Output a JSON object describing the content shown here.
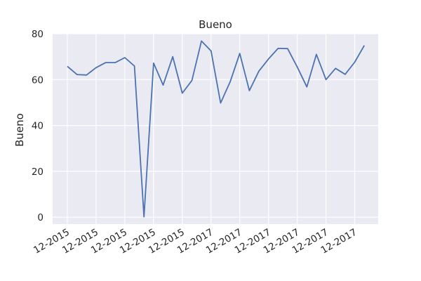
{
  "chart_data": {
    "type": "line",
    "title": "Bueno",
    "xlabel": "",
    "ylabel": "Bueno",
    "ylim": [
      -3,
      80
    ],
    "yticks": [
      0,
      20,
      40,
      60,
      80
    ],
    "xticks": [
      "12-2015",
      "12-2015",
      "12-2015",
      "12-2015",
      "12-2015",
      "12-2017",
      "12-2017",
      "12-2017",
      "12-2017",
      "12-2017",
      "12-2017"
    ],
    "grid": true,
    "legend": "none",
    "colors": {
      "line": "#4c72b0",
      "plot_bg": "#eaeaf2",
      "grid": "#ffffff"
    },
    "series": [
      {
        "values": [
          65.8,
          62.2,
          62.0,
          65.2,
          67.4,
          67.4,
          69.6,
          65.9,
          0.2,
          67.2,
          57.6,
          70.0,
          54.1,
          59.6,
          76.8,
          72.5,
          49.8,
          59.1,
          71.4,
          55.2,
          63.7,
          69.0,
          73.6,
          73.5,
          65.5,
          56.8,
          71.0,
          60.0,
          64.9,
          62.3,
          67.6,
          74.9
        ]
      }
    ]
  }
}
